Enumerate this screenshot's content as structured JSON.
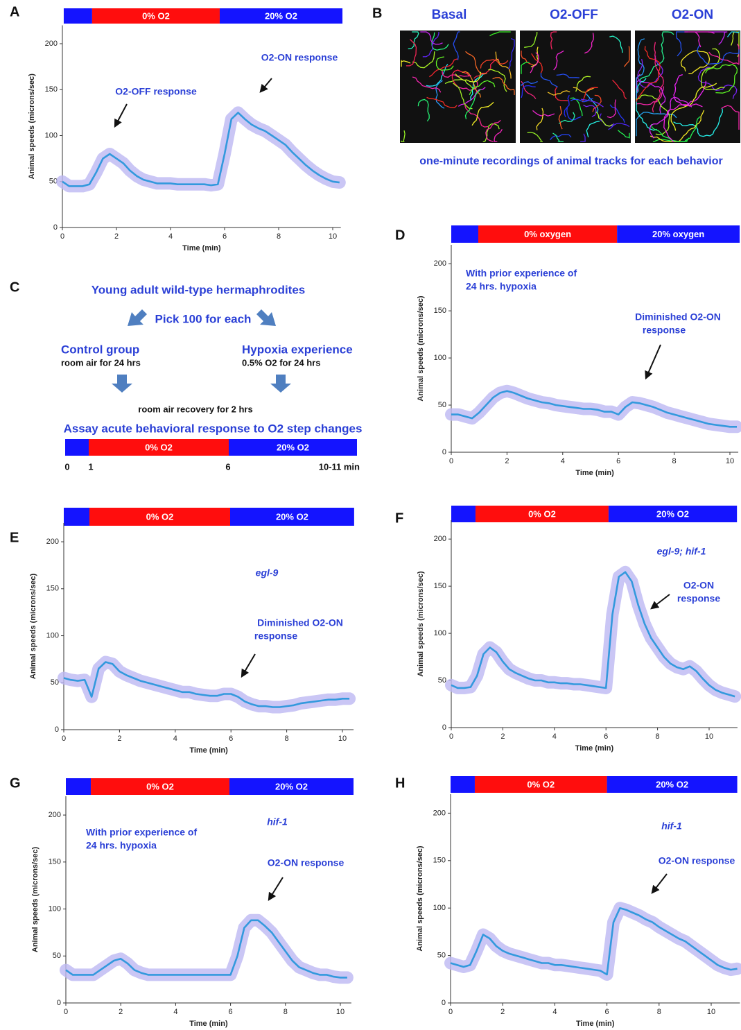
{
  "chart_data": [
    {
      "type": "line",
      "panel": "A",
      "xlabel": "Time (min)",
      "ylabel": "Animal speeds (microns/sec)",
      "xlim": [
        0,
        10.3
      ],
      "ylim": [
        0,
        220
      ],
      "xticks": [
        0,
        2,
        4,
        6,
        8,
        10
      ],
      "yticks": [
        0,
        50,
        100,
        150,
        200
      ],
      "condition_bar": [
        {
          "color": "#1414ff",
          "start": 0.05,
          "end": 1.1
        },
        {
          "label": "0% O2",
          "color": "#ff0d0d",
          "start": 1.1,
          "end": 5.82
        },
        {
          "label": "20% O2",
          "color": "#1414ff",
          "start": 5.82,
          "end": 10.36
        }
      ],
      "annotations": [
        "O2-OFF response",
        "O2-ON response"
      ],
      "x": [
        0,
        0.25,
        0.5,
        0.75,
        1,
        1.25,
        1.5,
        1.75,
        2,
        2.25,
        2.5,
        2.75,
        3,
        3.25,
        3.5,
        3.75,
        4,
        4.25,
        4.5,
        4.75,
        5,
        5.25,
        5.5,
        5.75,
        6,
        6.25,
        6.5,
        6.75,
        7,
        7.25,
        7.5,
        7.75,
        8,
        8.25,
        8.5,
        8.75,
        9,
        9.25,
        9.5,
        9.75,
        10,
        10.25
      ],
      "series": [
        {
          "color": "#3399dd",
          "band_color": "#bdb8f2",
          "values": [
            50,
            45,
            45,
            45,
            47,
            60,
            75,
            80,
            75,
            70,
            62,
            56,
            52,
            50,
            48,
            48,
            48,
            47,
            47,
            47,
            47,
            47,
            46,
            47,
            80,
            118,
            125,
            118,
            112,
            108,
            105,
            100,
            95,
            90,
            82,
            75,
            68,
            62,
            57,
            53,
            50,
            49
          ]
        }
      ]
    },
    {
      "type": "line",
      "panel": "D",
      "xlabel": "Time (min)",
      "ylabel": "Animal speeds (microns/sec)",
      "xlim": [
        0,
        10.3
      ],
      "ylim": [
        0,
        220
      ],
      "xticks": [
        0,
        2,
        4,
        6,
        8,
        10
      ],
      "yticks": [
        0,
        50,
        100,
        150,
        200
      ],
      "condition_bar": [
        {
          "color": "#1414ff",
          "start": 0,
          "end": 0.97
        },
        {
          "label": "0% oxygen",
          "color": "#ff0d0d",
          "start": 0.97,
          "end": 5.95
        },
        {
          "label": "20% oxygen",
          "color": "#1414ff",
          "start": 5.95,
          "end": 10.35
        }
      ],
      "annotations": [
        "With prior experience of",
        "24 hrs. hypoxia",
        "Diminished O2-ON",
        "response"
      ],
      "x": [
        0,
        0.25,
        0.5,
        0.75,
        1,
        1.25,
        1.5,
        1.75,
        2,
        2.25,
        2.5,
        2.75,
        3,
        3.25,
        3.5,
        3.75,
        4,
        4.25,
        4.5,
        4.75,
        5,
        5.25,
        5.5,
        5.75,
        6,
        6.25,
        6.5,
        6.75,
        7,
        7.25,
        7.5,
        7.75,
        8,
        8.25,
        8.5,
        8.75,
        9,
        9.25,
        9.5,
        9.75,
        10,
        10.25
      ],
      "series": [
        {
          "color": "#3399dd",
          "band_color": "#bdb8f2",
          "values": [
            40,
            40,
            38,
            36,
            42,
            50,
            58,
            63,
            65,
            63,
            60,
            57,
            55,
            53,
            52,
            50,
            49,
            48,
            47,
            46,
            46,
            45,
            43,
            43,
            40,
            48,
            53,
            52,
            50,
            48,
            45,
            42,
            40,
            38,
            36,
            34,
            32,
            30,
            29,
            28,
            27,
            27
          ]
        }
      ]
    },
    {
      "type": "line",
      "panel": "E",
      "xlabel": "Time (min)",
      "ylabel": "Animal speeds (microns/sec)",
      "genotype": "egl-9",
      "xlim": [
        0,
        10.4
      ],
      "ylim": [
        0,
        220
      ],
      "xticks": [
        0,
        2,
        4,
        6,
        8,
        10
      ],
      "yticks": [
        0,
        50,
        100,
        150,
        200
      ],
      "condition_bar": [
        {
          "color": "#1414ff",
          "start": 0,
          "end": 0.92
        },
        {
          "label": "0% O2",
          "color": "#ff0d0d",
          "start": 0.92,
          "end": 5.97
        },
        {
          "label": "20% O2",
          "color": "#1414ff",
          "start": 5.97,
          "end": 10.42
        }
      ],
      "annotations": [
        "Diminished O2-ON",
        "response"
      ],
      "x": [
        0,
        0.25,
        0.5,
        0.75,
        1,
        1.25,
        1.5,
        1.75,
        2,
        2.25,
        2.5,
        2.75,
        3,
        3.25,
        3.5,
        3.75,
        4,
        4.25,
        4.5,
        4.75,
        5,
        5.25,
        5.5,
        5.75,
        6,
        6.25,
        6.5,
        6.75,
        7,
        7.25,
        7.5,
        7.75,
        8,
        8.25,
        8.5,
        8.75,
        9,
        9.25,
        9.5,
        9.75,
        10,
        10.25
      ],
      "series": [
        {
          "color": "#3399dd",
          "band_color": "#bdb8f2",
          "values": [
            55,
            53,
            52,
            53,
            35,
            65,
            72,
            70,
            62,
            58,
            55,
            52,
            50,
            48,
            46,
            44,
            42,
            40,
            40,
            38,
            37,
            36,
            36,
            38,
            38,
            35,
            30,
            27,
            25,
            25,
            24,
            24,
            25,
            26,
            28,
            29,
            30,
            31,
            32,
            32,
            33,
            33
          ]
        }
      ]
    },
    {
      "type": "line",
      "panel": "F",
      "xlabel": "Time (min)",
      "ylabel": "Animal speeds (microns/sec)",
      "genotype": "egl-9; hif-1",
      "xlim": [
        0,
        11.1
      ],
      "ylim": [
        0,
        220
      ],
      "xticks": [
        0,
        2,
        4,
        6,
        8,
        10
      ],
      "yticks": [
        0,
        50,
        100,
        150,
        200
      ],
      "condition_bar": [
        {
          "color": "#1414ff",
          "start": 0,
          "end": 0.94
        },
        {
          "label": "0% O2",
          "color": "#ff0d0d",
          "start": 0.94,
          "end": 6.1
        },
        {
          "label": "20% O2",
          "color": "#1414ff",
          "start": 6.1,
          "end": 11.08
        }
      ],
      "annotations": [
        "O2-ON",
        "response"
      ],
      "x": [
        0,
        0.25,
        0.5,
        0.75,
        1,
        1.25,
        1.5,
        1.75,
        2,
        2.25,
        2.5,
        2.75,
        3,
        3.25,
        3.5,
        3.75,
        4,
        4.25,
        4.5,
        4.75,
        5,
        5.25,
        5.5,
        5.75,
        6,
        6.25,
        6.5,
        6.75,
        7,
        7.25,
        7.5,
        7.75,
        8,
        8.25,
        8.5,
        8.75,
        9,
        9.25,
        9.5,
        9.75,
        10,
        10.25,
        10.5,
        10.75,
        11
      ],
      "series": [
        {
          "color": "#3399dd",
          "band_color": "#bdb8f2",
          "values": [
            45,
            42,
            42,
            43,
            55,
            78,
            85,
            80,
            70,
            62,
            58,
            55,
            52,
            50,
            50,
            48,
            48,
            47,
            47,
            46,
            46,
            45,
            44,
            43,
            42,
            120,
            160,
            165,
            155,
            130,
            110,
            95,
            85,
            75,
            68,
            64,
            62,
            65,
            60,
            52,
            45,
            40,
            37,
            35,
            33
          ]
        }
      ]
    },
    {
      "type": "line",
      "panel": "G",
      "xlabel": "Time (min)",
      "ylabel": "Animal speeds (microns/sec)",
      "genotype": "hif-1",
      "xlim": [
        0,
        10.4
      ],
      "ylim": [
        0,
        220
      ],
      "xticks": [
        0,
        2,
        4,
        6,
        8,
        10
      ],
      "yticks": [
        0,
        50,
        100,
        150,
        200
      ],
      "condition_bar": [
        {
          "color": "#1414ff",
          "start": 0,
          "end": 0.91
        },
        {
          "label": "0% O2",
          "color": "#ff0d0d",
          "start": 0.91,
          "end": 5.96
        },
        {
          "label": "20% O2",
          "color": "#1414ff",
          "start": 5.96,
          "end": 10.48
        }
      ],
      "annotations": [
        "With prior experience of",
        "24 hrs. hypoxia",
        "O2-ON response"
      ],
      "x": [
        0,
        0.25,
        0.5,
        0.75,
        1,
        1.25,
        1.5,
        1.75,
        2,
        2.25,
        2.5,
        2.75,
        3,
        3.25,
        3.5,
        3.75,
        4,
        4.25,
        4.5,
        4.75,
        5,
        5.25,
        5.5,
        5.75,
        6,
        6.25,
        6.5,
        6.75,
        7,
        7.25,
        7.5,
        7.75,
        8,
        8.25,
        8.5,
        8.75,
        9,
        9.25,
        9.5,
        9.75,
        10,
        10.25
      ],
      "series": [
        {
          "color": "#3399dd",
          "band_color": "#bdb8f2",
          "values": [
            35,
            30,
            30,
            30,
            30,
            35,
            40,
            45,
            47,
            42,
            35,
            32,
            30,
            30,
            30,
            30,
            30,
            30,
            30,
            30,
            30,
            30,
            30,
            30,
            30,
            50,
            80,
            88,
            88,
            82,
            75,
            65,
            55,
            45,
            38,
            35,
            32,
            30,
            30,
            28,
            27,
            27
          ]
        }
      ]
    },
    {
      "type": "line",
      "panel": "H",
      "xlabel": "Time (min)",
      "ylabel": "Animal speeds (microns/sec)",
      "genotype": "hif-1",
      "xlim": [
        0,
        11.1
      ],
      "ylim": [
        0,
        220
      ],
      "xticks": [
        0,
        2,
        4,
        6,
        8,
        10
      ],
      "yticks": [
        0,
        50,
        100,
        150,
        200
      ],
      "condition_bar": [
        {
          "color": "#1414ff",
          "start": 0,
          "end": 0.93
        },
        {
          "label": "0% O2",
          "color": "#ff0d0d",
          "start": 0.93,
          "end": 6.0
        },
        {
          "label": "20% O2",
          "color": "#1414ff",
          "start": 6.0,
          "end": 11.0
        }
      ],
      "annotations": [
        "O2-ON response"
      ],
      "x": [
        0,
        0.25,
        0.5,
        0.75,
        1,
        1.25,
        1.5,
        1.75,
        2,
        2.25,
        2.5,
        2.75,
        3,
        3.25,
        3.5,
        3.75,
        4,
        4.25,
        4.5,
        4.75,
        5,
        5.25,
        5.5,
        5.75,
        6,
        6.25,
        6.5,
        6.75,
        7,
        7.25,
        7.5,
        7.75,
        8,
        8.25,
        8.5,
        8.75,
        9,
        9.25,
        9.5,
        9.75,
        10,
        10.25,
        10.5,
        10.75,
        11
      ],
      "series": [
        {
          "color": "#3399dd",
          "band_color": "#bdb8f2",
          "values": [
            42,
            40,
            38,
            40,
            55,
            72,
            68,
            60,
            55,
            52,
            50,
            48,
            46,
            44,
            42,
            42,
            40,
            40,
            39,
            38,
            37,
            36,
            35,
            34,
            30,
            85,
            100,
            98,
            95,
            92,
            88,
            85,
            80,
            76,
            72,
            68,
            65,
            60,
            55,
            50,
            45,
            40,
            37,
            35,
            36
          ]
        }
      ]
    }
  ],
  "panel_b": {
    "panel": "B",
    "labels": [
      "Basal",
      "O2-OFF",
      "O2-ON"
    ],
    "caption": "one-minute recordings of animal tracks for each behavior"
  },
  "panel_c": {
    "panel": "C",
    "title": "Young adult wild-type hermaphrodites",
    "pick": "Pick 100 for each",
    "control": "Control group",
    "control_detail": "room air for 24 hrs",
    "hypoxia": "Hypoxia experience",
    "hypoxia_detail": "0.5% O2 for 24 hrs",
    "recovery": "room air recovery for 2 hrs",
    "assay": "Assay acute behavioral response to O2 step changes",
    "timeline": {
      "segments": [
        {
          "color": "#1414ff"
        },
        {
          "label": "0% O2",
          "color": "#ff0d0d"
        },
        {
          "label": "20% O2",
          "color": "#1414ff"
        }
      ],
      "ticks": [
        "0",
        "1",
        "6",
        "10-11 min"
      ]
    }
  }
}
